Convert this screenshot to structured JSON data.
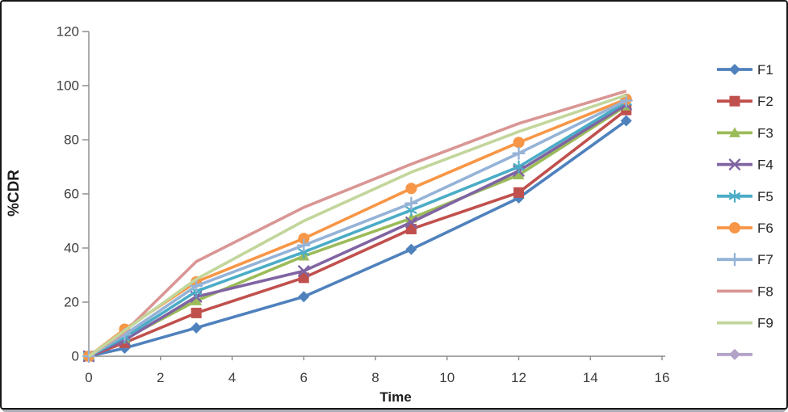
{
  "window": {
    "background": "#ffffff",
    "border_color": "#161616",
    "bottom_edge_color": "#a9aeb6"
  },
  "chart_data": {
    "type": "line",
    "title": "",
    "xlabel": "Time",
    "ylabel": "%CDR",
    "x": [
      0,
      1,
      3,
      6,
      9,
      12,
      15
    ],
    "xticks": [
      0,
      2,
      4,
      6,
      8,
      10,
      12,
      14,
      16
    ],
    "yticks": [
      0,
      20,
      40,
      60,
      80,
      100,
      120
    ],
    "xlim": [
      0,
      16
    ],
    "ylim": [
      0,
      120
    ],
    "grid": false,
    "legend_position": "right",
    "axis_color": "#8a8a8a",
    "tick_label_color": "#3d3d3d",
    "series": [
      {
        "name": "F1",
        "color": "#4F81BD",
        "marker": "diamond",
        "values": [
          0,
          3,
          10.5,
          22,
          39.5,
          58.5,
          87
        ]
      },
      {
        "name": "F2",
        "color": "#C0504D",
        "marker": "square",
        "values": [
          0,
          5,
          16,
          29,
          47,
          60.5,
          91
        ]
      },
      {
        "name": "F3",
        "color": "#9BBB59",
        "marker": "triangle",
        "values": [
          0,
          6.5,
          20.5,
          37,
          51,
          67,
          92.5
        ]
      },
      {
        "name": "F4",
        "color": "#8064A2",
        "marker": "x",
        "values": [
          0,
          6,
          22,
          31.5,
          49.5,
          68.5,
          93
        ]
      },
      {
        "name": "F5",
        "color": "#4BACC6",
        "marker": "asterisk",
        "values": [
          0,
          7,
          24,
          38.5,
          54,
          70,
          94
        ]
      },
      {
        "name": "F6",
        "color": "#F79646",
        "marker": "circle",
        "values": [
          0,
          10,
          27.5,
          43.5,
          62,
          79,
          95
        ]
      },
      {
        "name": "F7",
        "color": "#95B3D7",
        "marker": "plus",
        "values": [
          0,
          8,
          26,
          41,
          56.5,
          75,
          94.5
        ]
      },
      {
        "name": "F8",
        "color": "#D99694",
        "marker": "none",
        "values": [
          0,
          9,
          35,
          55,
          71,
          86,
          98
        ]
      },
      {
        "name": "F9",
        "color": "#C3D69B",
        "marker": "none",
        "values": [
          0,
          9.5,
          28.5,
          50,
          68,
          83,
          96.5
        ]
      },
      {
        "name": "",
        "color": "#B3A2C7",
        "marker": "diamond",
        "values": []
      }
    ]
  }
}
